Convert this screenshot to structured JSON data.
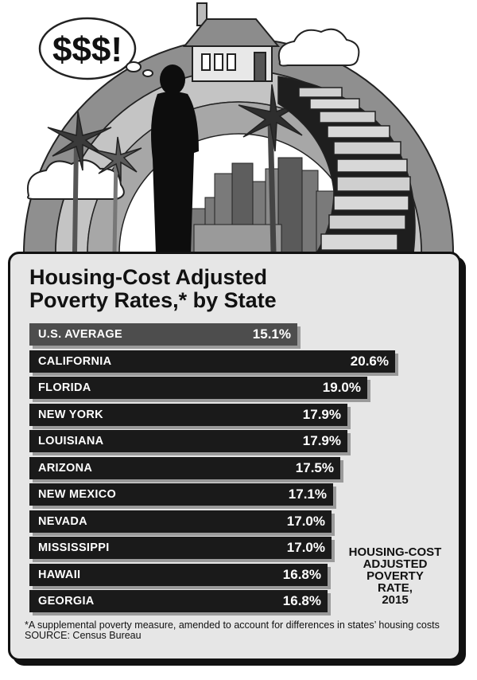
{
  "bubble_text": "$$$!",
  "chart_data": {
    "type": "bar",
    "orientation": "horizontal",
    "title": "Housing-Cost Adjusted\nPoverty Rates,* by State",
    "legend_label": "HOUSING-COST\nADJUSTED\nPOVERTY\nRATE,\n2015",
    "categories": [
      "U.S. AVERAGE",
      "CALIFORNIA",
      "FLORIDA",
      "NEW YORK",
      "LOUISIANA",
      "ARIZONA",
      "NEW MEXICO",
      "NEVADA",
      "MISSISSIPPI",
      "HAWAII",
      "GEORGIA"
    ],
    "values": [
      15.1,
      20.6,
      19.0,
      17.9,
      17.9,
      17.5,
      17.1,
      17.0,
      17.0,
      16.8,
      16.8
    ],
    "value_labels": [
      "15.1%",
      "20.6%",
      "19.0%",
      "17.9%",
      "17.9%",
      "17.5%",
      "17.1%",
      "17.0%",
      "17.0%",
      "16.8%",
      "16.8%"
    ],
    "highlight_category": "U.S. AVERAGE",
    "unit": "%"
  },
  "footnote": "*A supplemental poverty measure, amended to account for differences in states’ housing costs",
  "source": "SOURCE: Census Bureau",
  "colors": {
    "bar": "#1a1a1a",
    "average_bar": "#4d4d4d",
    "panel": "#e6e6e6"
  }
}
